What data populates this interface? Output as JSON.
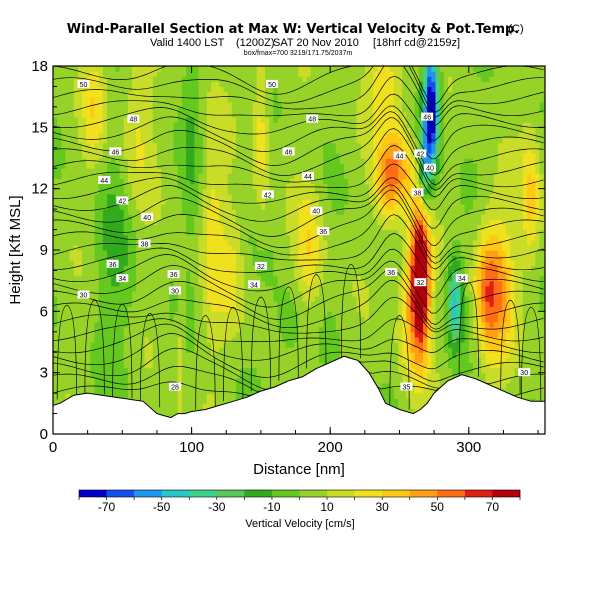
{
  "chart_data": {
    "type": "heatmap",
    "title": "Wind-Parallel Section at Max W: Vertical Velocity & Pot.Temp.",
    "title_mark": "(C)",
    "subtitle_valid": "Valid 1400 LST",
    "subtitle_init": "(1200Z)",
    "subtitle_date": "SAT 20 Nov 2010",
    "subtitle_model": "[18hrf cd@2159z]",
    "subtitle_tiny": "box/fmax=700 3219/171.75/2037m",
    "xlabel": "Distance [nm]",
    "ylabel": "Height [Kft MSL]",
    "xlim": [
      0,
      355
    ],
    "ylim": [
      0,
      18
    ],
    "xticks": [
      0,
      100,
      200,
      300
    ],
    "yticks": [
      0,
      3,
      6,
      9,
      12,
      15,
      18
    ],
    "colorbar": {
      "label": "Vertical Velocity [cm/s]",
      "ticks": [
        -70,
        -50,
        -30,
        -10,
        10,
        30,
        50,
        70
      ],
      "range": [
        -80,
        80
      ],
      "colors": [
        "#0000c8",
        "#1450f0",
        "#1e96f0",
        "#28c8c8",
        "#3cd28c",
        "#5ac85a",
        "#32aa1e",
        "#64c81e",
        "#96d228",
        "#c8dc28",
        "#f0e11e",
        "#ffc814",
        "#ffa014",
        "#ff6e14",
        "#e11e14",
        "#b4000a"
      ]
    },
    "terrain": [
      [
        0,
        1.4
      ],
      [
        5,
        1.5
      ],
      [
        15,
        1.9
      ],
      [
        25,
        2.0
      ],
      [
        35,
        1.9
      ],
      [
        45,
        1.8
      ],
      [
        55,
        1.7
      ],
      [
        65,
        1.6
      ],
      [
        75,
        1.0
      ],
      [
        80,
        0.9
      ],
      [
        85,
        0.8
      ],
      [
        90,
        1.0
      ],
      [
        95,
        1.0
      ],
      [
        100,
        1.1
      ],
      [
        110,
        1.2
      ],
      [
        120,
        1.4
      ],
      [
        130,
        1.6
      ],
      [
        140,
        1.8
      ],
      [
        150,
        2.1
      ],
      [
        160,
        2.3
      ],
      [
        170,
        2.6
      ],
      [
        180,
        2.8
      ],
      [
        190,
        3.2
      ],
      [
        200,
        3.5
      ],
      [
        210,
        3.8
      ],
      [
        220,
        3.6
      ],
      [
        228,
        3.0
      ],
      [
        235,
        2.2
      ],
      [
        240,
        1.5
      ],
      [
        250,
        1.2
      ],
      [
        260,
        1.0
      ],
      [
        265,
        1.2
      ],
      [
        270,
        1.5
      ],
      [
        275,
        2.0
      ],
      [
        285,
        2.6
      ],
      [
        295,
        2.9
      ],
      [
        305,
        2.7
      ],
      [
        315,
        2.4
      ],
      [
        325,
        2.1
      ],
      [
        335,
        1.8
      ],
      [
        345,
        1.6
      ],
      [
        355,
        1.6
      ]
    ],
    "theta_labels": [
      {
        "text": "50",
        "x": 22,
        "y": 17.1
      },
      {
        "text": "50",
        "x": 158,
        "y": 17.1
      },
      {
        "text": "48",
        "x": 58,
        "y": 15.4
      },
      {
        "text": "48",
        "x": 187,
        "y": 15.4
      },
      {
        "text": "46",
        "x": 45,
        "y": 13.8
      },
      {
        "text": "46",
        "x": 170,
        "y": 13.8
      },
      {
        "text": "44",
        "x": 37,
        "y": 12.4
      },
      {
        "text": "44",
        "x": 184,
        "y": 12.6
      },
      {
        "text": "42",
        "x": 50,
        "y": 11.4
      },
      {
        "text": "42",
        "x": 155,
        "y": 11.7
      },
      {
        "text": "40",
        "x": 68,
        "y": 10.6
      },
      {
        "text": "40",
        "x": 190,
        "y": 10.9
      },
      {
        "text": "38",
        "x": 66,
        "y": 9.3
      },
      {
        "text": "36",
        "x": 195,
        "y": 9.9
      },
      {
        "text": "36",
        "x": 43,
        "y": 8.3
      },
      {
        "text": "32",
        "x": 150,
        "y": 8.2
      },
      {
        "text": "34",
        "x": 50,
        "y": 7.6
      },
      {
        "text": "34",
        "x": 145,
        "y": 7.3
      },
      {
        "text": "36",
        "x": 87,
        "y": 7.8
      },
      {
        "text": "30",
        "x": 88,
        "y": 7.0
      },
      {
        "text": "30",
        "x": 22,
        "y": 6.8
      },
      {
        "text": "28",
        "x": 88,
        "y": 2.3
      },
      {
        "text": "46",
        "x": 270,
        "y": 15.5
      },
      {
        "text": "44",
        "x": 250,
        "y": 13.6
      },
      {
        "text": "42",
        "x": 265,
        "y": 13.7
      },
      {
        "text": "40",
        "x": 272,
        "y": 13.0
      },
      {
        "text": "38",
        "x": 263,
        "y": 11.8
      },
      {
        "text": "36",
        "x": 244,
        "y": 7.9
      },
      {
        "text": "32",
        "x": 265,
        "y": 7.4
      },
      {
        "text": "34",
        "x": 295,
        "y": 7.6
      },
      {
        "text": "30",
        "x": 340,
        "y": 3.0
      },
      {
        "text": "35",
        "x": 255,
        "y": 2.3
      }
    ]
  }
}
